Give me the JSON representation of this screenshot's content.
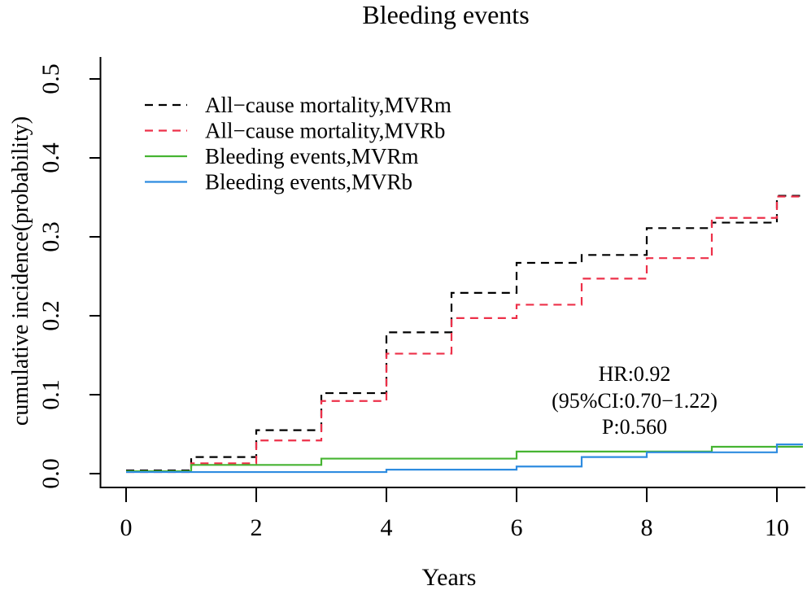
{
  "chart_data": {
    "type": "line",
    "subtype": "step-cumulative-incidence",
    "title": "Bleeding events",
    "xlabel": "Years",
    "ylabel": "cumulative incidence(probability)",
    "xlim": [
      0,
      10.4
    ],
    "ylim": [
      0,
      0.5
    ],
    "x_ticks": [
      0,
      2,
      4,
      6,
      8,
      10
    ],
    "y_ticks": [
      0,
      0.1,
      0.2,
      0.3,
      0.4,
      0.5
    ],
    "y_tick_labels": [
      "0.0",
      "0.1",
      "0.2",
      "0.3",
      "0.4",
      "0.5"
    ],
    "grid": false,
    "legend_position": "top-left-inside",
    "series": [
      {
        "name": "All−cause mortality,MVRm",
        "color": "#000000",
        "line_style": "dashed",
        "step_points": [
          [
            0,
            0.004
          ],
          [
            1,
            0.021
          ],
          [
            2,
            0.055
          ],
          [
            3,
            0.102
          ],
          [
            4,
            0.179
          ],
          [
            5,
            0.229
          ],
          [
            6,
            0.267
          ],
          [
            7,
            0.277
          ],
          [
            8,
            0.311
          ],
          [
            9,
            0.318
          ],
          [
            10,
            0.352
          ],
          [
            10.4,
            0.352
          ]
        ]
      },
      {
        "name": "All−cause mortality,MVRb",
        "color": "#ed3049",
        "line_style": "dashed",
        "step_points": [
          [
            0,
            0.002
          ],
          [
            1,
            0.013
          ],
          [
            2,
            0.042
          ],
          [
            3,
            0.092
          ],
          [
            4,
            0.152
          ],
          [
            5,
            0.197
          ],
          [
            6,
            0.214
          ],
          [
            7,
            0.247
          ],
          [
            8,
            0.273
          ],
          [
            9,
            0.324
          ],
          [
            10,
            0.351
          ],
          [
            10.4,
            0.351
          ]
        ]
      },
      {
        "name": "Bleeding events,MVRm",
        "color": "#46b432",
        "line_style": "solid",
        "step_points": [
          [
            0,
            0.003
          ],
          [
            1,
            0.011
          ],
          [
            3,
            0.019
          ],
          [
            6,
            0.028
          ],
          [
            9,
            0.034
          ],
          [
            10.4,
            0.034
          ]
        ]
      },
      {
        "name": "Bleeding events,MVRb",
        "color": "#2e8ce0",
        "line_style": "solid",
        "step_points": [
          [
            0,
            0.002
          ],
          [
            4,
            0.005
          ],
          [
            6,
            0.009
          ],
          [
            7,
            0.021
          ],
          [
            8,
            0.027
          ],
          [
            10,
            0.037
          ],
          [
            10.4,
            0.037
          ]
        ]
      }
    ],
    "annotation": [
      "HR:0.92",
      "(95%CI:0.70−1.22)",
      "P:0.560"
    ]
  }
}
